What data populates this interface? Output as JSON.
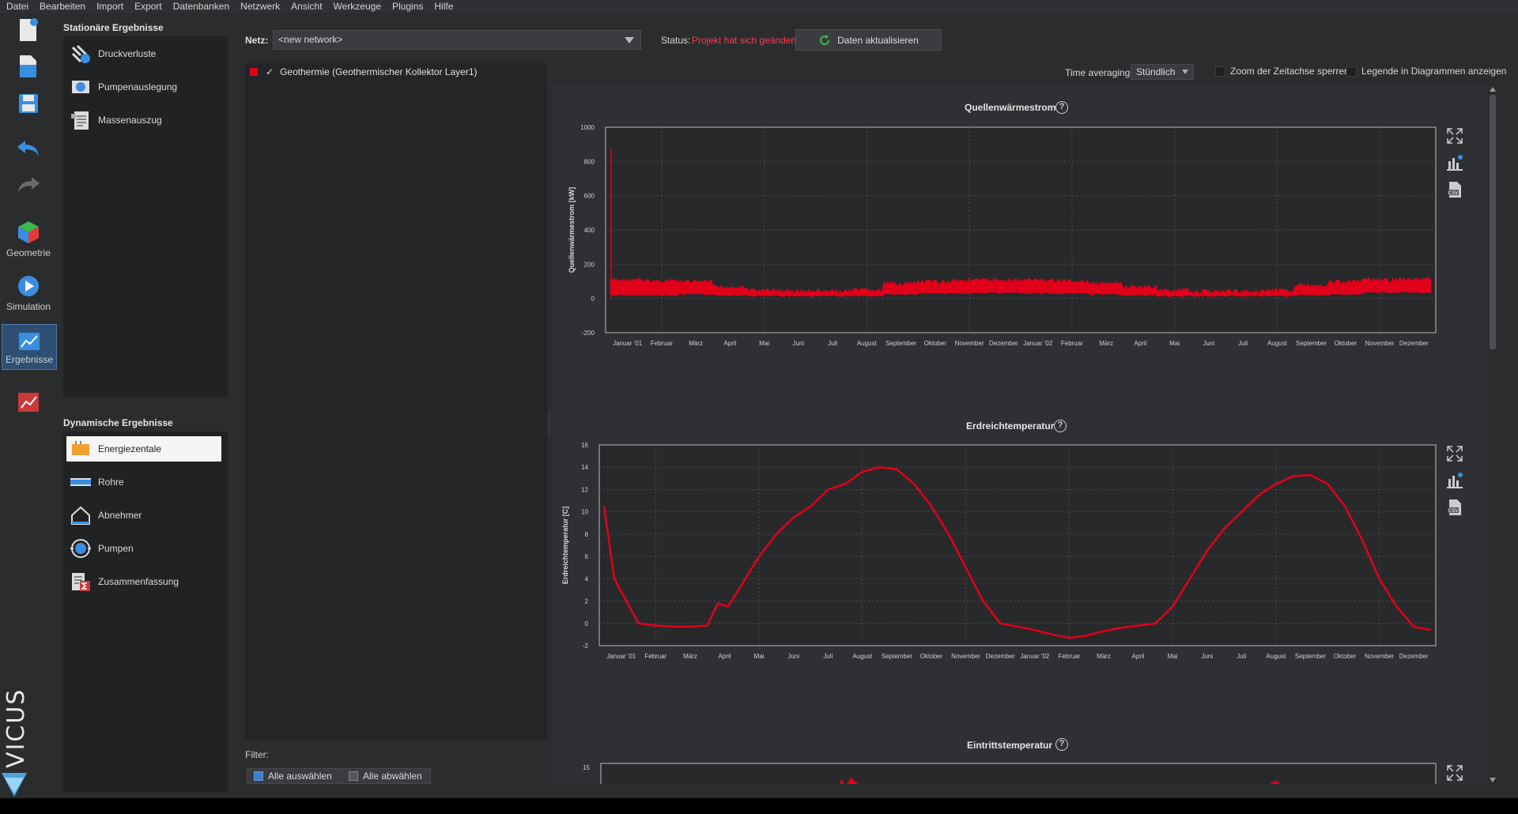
{
  "menu": [
    "Datei",
    "Bearbeiten",
    "Import",
    "Export",
    "Datenbanken",
    "Netzwerk",
    "Ansicht",
    "Werkzeuge",
    "Plugins",
    "Hilfe"
  ],
  "toolbar": {
    "geometry_label": "Geometrie",
    "simulation_label": "Simulation",
    "results_label": "Ergebnisse"
  },
  "stationary": {
    "title": "Stationäre Ergebnisse",
    "items": [
      "Druckverluste",
      "Pumpenauslegung",
      "Massenauszug"
    ]
  },
  "dynamic": {
    "title": "Dynamische Ergebnisse",
    "items": [
      "Energiezentale",
      "Rohre",
      "Abnehmer",
      "Pumpen",
      "Zusammenfassung"
    ],
    "selected_index": 0
  },
  "network": {
    "label": "Netz:",
    "value": "<new network>"
  },
  "status": {
    "label": "Status:",
    "value": "Projekt hat sich geändert",
    "color": "#ff3a4a"
  },
  "update_button": "Daten aktualisieren",
  "layers": [
    {
      "name": "Geothermie (Geothermischer Kollektor Layer1)",
      "checked": true,
      "color": "#e0001a"
    }
  ],
  "filter": {
    "label": "Filter:",
    "value": ""
  },
  "select_all": "Alle auswählen",
  "deselect_all": "Alle abwählen",
  "options": {
    "time_averaging_label": "Time averaging",
    "time_averaging_value": "Stündlich",
    "zoom_lock_label": "Zoom der Zeitachse sperren",
    "legend_label": "Legende in Diagrammen anzeigen"
  },
  "brand": "VICUS",
  "accent_color": "#e0001a",
  "chart_data": [
    {
      "type": "area",
      "title": "Quellenwärmestrom",
      "ylabel": "Quellenwärmestrom [kW]",
      "xlabel": "",
      "ylim": [
        -200,
        1000
      ],
      "yticks": [
        -200,
        0,
        200,
        400,
        600,
        800,
        1000
      ],
      "x_tick_labels": [
        "Januar '01",
        "Februar",
        "März",
        "April",
        "Mai",
        "Juni",
        "Juli",
        "August",
        "September",
        "Oktober",
        "November",
        "Dezember",
        "Januar '02",
        "Februar",
        "März",
        "April",
        "Mai",
        "Juni",
        "Juli",
        "August",
        "September",
        "Oktober",
        "November",
        "Dezember"
      ],
      "series": [
        {
          "color": "#e0001a",
          "monthly_low": [
            25,
            25,
            30,
            25,
            20,
            20,
            20,
            20,
            30,
            35,
            35,
            40,
            35,
            35,
            30,
            25,
            20,
            20,
            20,
            20,
            25,
            30,
            40,
            40
          ],
          "monthly_high": [
            120,
            115,
            110,
            80,
            60,
            55,
            55,
            60,
            100,
            110,
            120,
            120,
            120,
            115,
            100,
            80,
            60,
            55,
            55,
            60,
            90,
            110,
            120,
            125
          ],
          "initial_spike": 880
        }
      ],
      "grid": true
    },
    {
      "type": "line",
      "title": "Erdreichtemperatur",
      "ylabel": "Erdreichtemperatur [C]",
      "xlabel": "",
      "ylim": [
        -2,
        16
      ],
      "yticks": [
        -2,
        0,
        2,
        4,
        6,
        8,
        10,
        12,
        14,
        16
      ],
      "x_tick_labels": [
        "Januar '01",
        "Februar",
        "März",
        "April",
        "Mai",
        "Juni",
        "Juli",
        "August",
        "September",
        "Oktober",
        "November",
        "Dezember",
        "Januar '02",
        "Februar",
        "März",
        "April",
        "Mai",
        "Juni",
        "Juli",
        "August",
        "September",
        "Oktober",
        "November",
        "Dezember"
      ],
      "series": [
        {
          "color": "#e0001a",
          "x": [
            0,
            0.3,
            1,
            1.5,
            2,
            2.5,
            3,
            3.3,
            3.6,
            4,
            4.5,
            5,
            5.5,
            6,
            6.5,
            7,
            7.5,
            8,
            8.5,
            9,
            9.5,
            10,
            10.5,
            11,
            11.5,
            12,
            12.5,
            13,
            13.5,
            14,
            14.5,
            15,
            15.5,
            16,
            16.5,
            17,
            17.5,
            18,
            18.5,
            19,
            19.5,
            20,
            20.5,
            21,
            21.5,
            22,
            22.5,
            23,
            23.5,
            24
          ],
          "y": [
            10.5,
            4,
            0,
            -0.2,
            -0.3,
            -0.3,
            -0.2,
            1.8,
            1.5,
            3.5,
            6,
            8,
            9.5,
            10.5,
            12,
            12.5,
            13.6,
            14,
            13.8,
            12.5,
            10.5,
            8,
            5,
            2,
            0,
            -0.3,
            -0.6,
            -1,
            -1.3,
            -1.1,
            -0.7,
            -0.4,
            -0.2,
            0,
            1.5,
            4,
            6.5,
            8.5,
            10,
            11.5,
            12.5,
            13.2,
            13.3,
            12.5,
            10.5,
            7.5,
            4,
            1.5,
            -0.3,
            -0.6
          ]
        }
      ],
      "grid": true
    },
    {
      "type": "line",
      "title": "Eintrittstemperatur",
      "ylabel": "",
      "xlabel": "",
      "yticks": [
        15
      ],
      "series": [
        {
          "color": "#e0001a"
        }
      ],
      "grid": true
    }
  ]
}
